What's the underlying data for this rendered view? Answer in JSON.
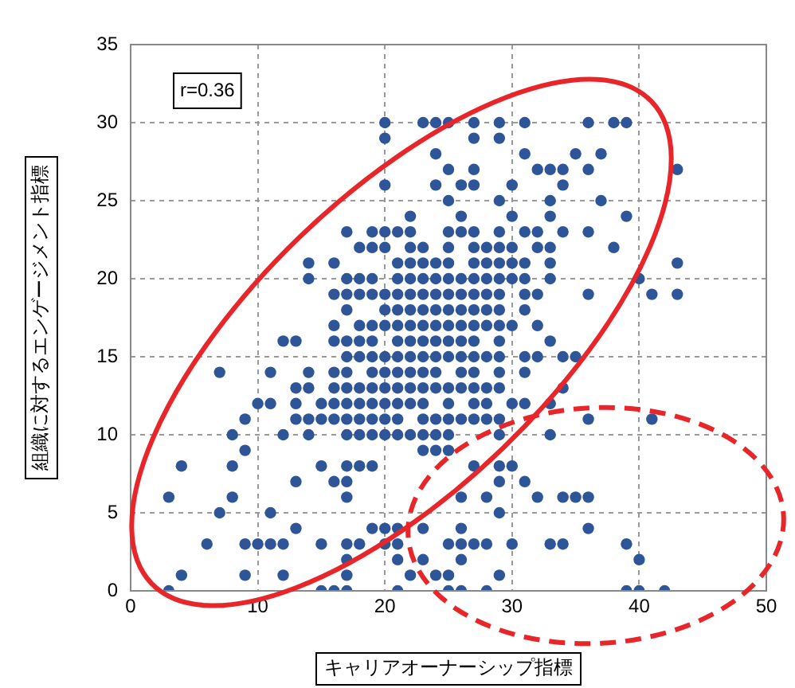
{
  "chart_data": {
    "type": "scatter",
    "xlabel": "キャリアオーナーシップ指標",
    "ylabel": "組織に対するエンゲージメント指標",
    "annotations": [
      "r=0.36"
    ],
    "xlim": [
      0,
      50
    ],
    "xticks": [
      0,
      10,
      20,
      30,
      40,
      50
    ],
    "ylim": [
      0,
      35
    ],
    "yticks": [
      0,
      5,
      10,
      15,
      20,
      25,
      30,
      35
    ],
    "grid": true,
    "marker": "circle",
    "series": [
      {
        "color": "#2e5597",
        "x": [
          20,
          23,
          24,
          25,
          27,
          29,
          31,
          36,
          38,
          39,
          20,
          27,
          29,
          24,
          31,
          35,
          37,
          25,
          27,
          32,
          33,
          34,
          36,
          43,
          20,
          24,
          26,
          27,
          30,
          34,
          25,
          29,
          33,
          37,
          22,
          26,
          30,
          33,
          39,
          17,
          19,
          20,
          21,
          22,
          25,
          26,
          27,
          29,
          31,
          32,
          34,
          36,
          18,
          19,
          20,
          22,
          23,
          25,
          27,
          28,
          29,
          30,
          32,
          33,
          38,
          14,
          16,
          21,
          22,
          23,
          24,
          25,
          27,
          28,
          29,
          30,
          31,
          33,
          43,
          14,
          17,
          18,
          19,
          21,
          22,
          23,
          24,
          25,
          26,
          27,
          28,
          29,
          30,
          31,
          33,
          40,
          16,
          17,
          18,
          19,
          20,
          21,
          22,
          23,
          24,
          25,
          26,
          27,
          28,
          29,
          31,
          32,
          36,
          41,
          43,
          17,
          20,
          21,
          22,
          23,
          24,
          25,
          26,
          27,
          28,
          29,
          31,
          16,
          18,
          19,
          20,
          21,
          22,
          23,
          24,
          25,
          26,
          27,
          28,
          29,
          30,
          32,
          12,
          13,
          16,
          17,
          18,
          19,
          21,
          22,
          23,
          24,
          25,
          26,
          27,
          29,
          33,
          17,
          18,
          19,
          20,
          21,
          22,
          23,
          24,
          25,
          26,
          27,
          28,
          29,
          31,
          32,
          34,
          35,
          7,
          11,
          14,
          16,
          17,
          19,
          20,
          21,
          22,
          23,
          24,
          26,
          27,
          29,
          31,
          13,
          14,
          16,
          17,
          18,
          19,
          20,
          21,
          22,
          23,
          24,
          25,
          26,
          27,
          28,
          29,
          34,
          10,
          11,
          13,
          15,
          16,
          17,
          18,
          19,
          20,
          21,
          22,
          23,
          25,
          27,
          28,
          30,
          31,
          33,
          9,
          13,
          14,
          15,
          16,
          17,
          18,
          19,
          20,
          21,
          23,
          24,
          25,
          26,
          27,
          28,
          29,
          36,
          41,
          8,
          12,
          14,
          17,
          18,
          19,
          20,
          21,
          22,
          23,
          24,
          25,
          29,
          33,
          9,
          23,
          24,
          25,
          4,
          8,
          15,
          17,
          18,
          19,
          27,
          29,
          30,
          13,
          16,
          17,
          29,
          31,
          3,
          8,
          17,
          26,
          28,
          32,
          34,
          35,
          36,
          7,
          11,
          29,
          13,
          19,
          20,
          21,
          23,
          26,
          36,
          6,
          9,
          10,
          11,
          12,
          15,
          17,
          18,
          20,
          21,
          25,
          26,
          27,
          28,
          30,
          33,
          34,
          39,
          17,
          21,
          23,
          26,
          40,
          4,
          9,
          12,
          17,
          22,
          24,
          25,
          29,
          3,
          15,
          16,
          17,
          21,
          25,
          26,
          28,
          39,
          40,
          42
        ],
        "values": [
          30,
          30,
          30,
          30,
          30,
          30,
          30,
          30,
          30,
          30,
          29,
          29,
          29,
          28,
          28,
          28,
          28,
          27,
          27,
          27,
          27,
          27,
          27,
          27,
          26,
          26,
          26,
          26,
          26,
          26,
          25,
          25,
          25,
          25,
          24,
          24,
          24,
          24,
          24,
          23,
          23,
          23,
          23,
          23,
          23,
          23,
          23,
          23,
          23,
          23,
          23,
          23,
          22,
          22,
          22,
          22,
          22,
          22,
          22,
          22,
          22,
          22,
          22,
          22,
          22,
          21,
          21,
          21,
          21,
          21,
          21,
          21,
          21,
          21,
          21,
          21,
          21,
          21,
          21,
          20,
          20,
          20,
          20,
          20,
          20,
          20,
          20,
          20,
          20,
          20,
          20,
          20,
          20,
          20,
          20,
          20,
          19,
          19,
          19,
          19,
          19,
          19,
          19,
          19,
          19,
          19,
          19,
          19,
          19,
          19,
          19,
          19,
          19,
          19,
          19,
          18,
          18,
          18,
          18,
          18,
          18,
          18,
          18,
          18,
          18,
          18,
          18,
          17,
          17,
          17,
          17,
          17,
          17,
          17,
          17,
          17,
          17,
          17,
          17,
          17,
          17,
          17,
          16,
          16,
          16,
          16,
          16,
          16,
          16,
          16,
          16,
          16,
          16,
          16,
          16,
          16,
          16,
          15,
          15,
          15,
          15,
          15,
          15,
          15,
          15,
          15,
          15,
          15,
          15,
          15,
          15,
          15,
          15,
          15,
          14,
          14,
          14,
          14,
          14,
          14,
          14,
          14,
          14,
          14,
          14,
          14,
          14,
          14,
          14,
          13,
          13,
          13,
          13,
          13,
          13,
          13,
          13,
          13,
          13,
          13,
          13,
          13,
          13,
          13,
          13,
          13,
          12,
          12,
          12,
          12,
          12,
          12,
          12,
          12,
          12,
          12,
          12,
          12,
          12,
          12,
          12,
          12,
          12,
          12,
          11,
          11,
          11,
          11,
          11,
          11,
          11,
          11,
          11,
          11,
          11,
          11,
          11,
          11,
          11,
          11,
          11,
          11,
          11,
          10,
          10,
          10,
          10,
          10,
          10,
          10,
          10,
          10,
          10,
          10,
          10,
          10,
          10,
          9,
          9,
          9,
          9,
          8,
          8,
          8,
          8,
          8,
          8,
          8,
          8,
          8,
          7,
          7,
          7,
          7,
          7,
          6,
          6,
          6,
          6,
          6,
          6,
          6,
          6,
          6,
          5,
          5,
          5,
          4,
          4,
          4,
          4,
          4,
          4,
          4,
          3,
          3,
          3,
          3,
          3,
          3,
          3,
          3,
          3,
          3,
          3,
          3,
          3,
          3,
          3,
          3,
          3,
          3,
          2,
          2,
          2,
          2,
          2,
          1,
          1,
          1,
          1,
          1,
          1,
          1,
          1,
          0,
          0,
          0,
          0,
          0,
          0,
          0,
          0,
          0,
          0,
          0
        ]
      }
    ]
  }
}
